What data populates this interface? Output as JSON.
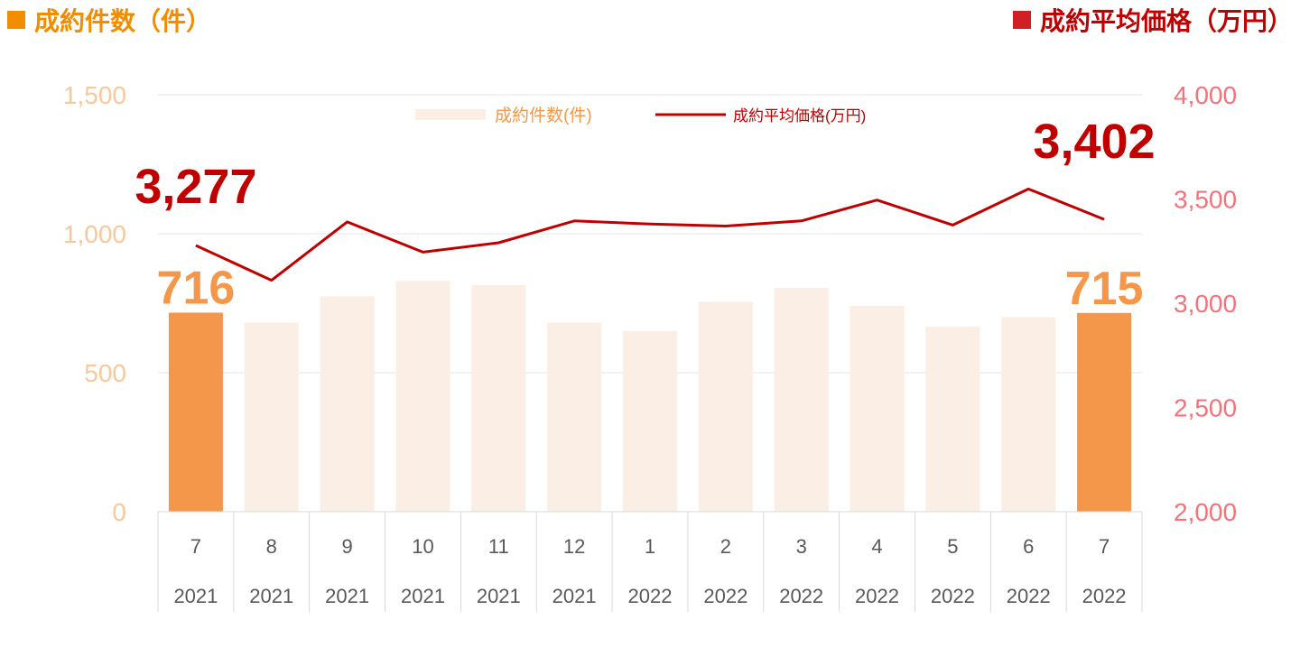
{
  "header": {
    "left_title": "成約件数（件）",
    "left_color": "#f28c00",
    "right_title": "成約平均価格（万円）",
    "right_color": "#d21f25"
  },
  "chart_data": {
    "type": "bar",
    "categories": [
      {
        "month": "7",
        "year": "2021"
      },
      {
        "month": "8",
        "year": "2021"
      },
      {
        "month": "9",
        "year": "2021"
      },
      {
        "month": "10",
        "year": "2021"
      },
      {
        "month": "11",
        "year": "2021"
      },
      {
        "month": "12",
        "year": "2021"
      },
      {
        "month": "1",
        "year": "2022"
      },
      {
        "month": "2",
        "year": "2022"
      },
      {
        "month": "3",
        "year": "2022"
      },
      {
        "month": "4",
        "year": "2022"
      },
      {
        "month": "5",
        "year": "2022"
      },
      {
        "month": "6",
        "year": "2022"
      },
      {
        "month": "7",
        "year": "2022"
      }
    ],
    "series": [
      {
        "name": "成約件数(件)",
        "type": "bar",
        "axis": "left",
        "values": [
          716,
          680,
          775,
          830,
          815,
          680,
          650,
          755,
          805,
          740,
          665,
          700,
          715
        ],
        "highlight": [
          0,
          12
        ],
        "color": "#fbeee4",
        "highlight_color": "#f5974a"
      },
      {
        "name": "成約平均価格(万円)",
        "type": "line",
        "axis": "right",
        "values": [
          3277,
          3110,
          3390,
          3245,
          3290,
          3395,
          3380,
          3370,
          3395,
          3495,
          3375,
          3548,
          3402
        ],
        "color": "#c00000"
      }
    ],
    "y_left": {
      "min": 0,
      "max": 1500,
      "ticks": [
        "0",
        "500",
        "1,000",
        "1,500"
      ],
      "color": "#f8c89a"
    },
    "y_right": {
      "min": 2000,
      "max": 4000,
      "ticks": [
        "2,000",
        "2,500",
        "3,000",
        "3,500",
        "4,000"
      ],
      "color": "#f4737a"
    },
    "data_labels": {
      "bar_first": "716",
      "bar_last": "715",
      "line_first": "3,277",
      "line_last": "3,402",
      "bar_color": "#f5974a",
      "line_color": "#c00000"
    },
    "grid": true,
    "legend_position": "top-center"
  }
}
